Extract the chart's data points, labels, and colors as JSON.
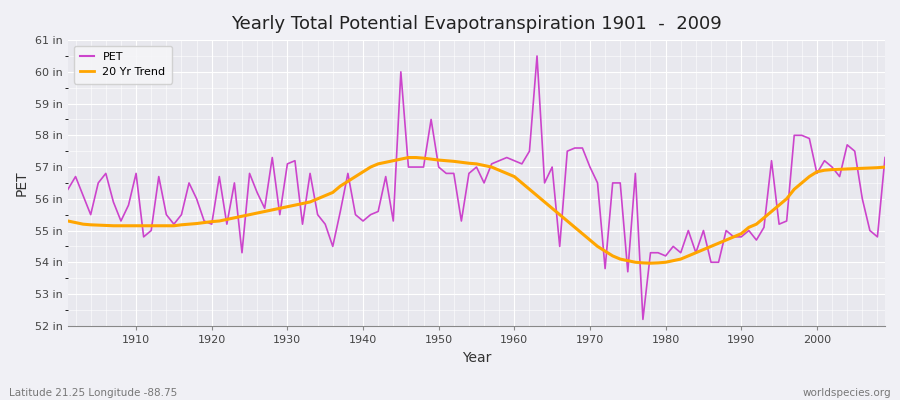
{
  "title": "Yearly Total Potential Evapotranspiration 1901  -  2009",
  "xlabel": "Year",
  "ylabel": "PET",
  "bottom_left_label": "Latitude 21.25 Longitude -88.75",
  "bottom_right_label": "worldspecies.org",
  "pet_color": "#CC44CC",
  "trend_color": "#FFA500",
  "background_color": "#F0F0F5",
  "plot_bg_color": "#F0F0F5",
  "grid_color": "#FFFFFF",
  "ylim": [
    52,
    61
  ],
  "xlim": [
    1901,
    2009
  ],
  "ytick_labels": [
    "52 in",
    "53 in",
    "54 in",
    "55 in",
    "56 in",
    "57 in",
    "58 in",
    "59 in",
    "60 in",
    "61 in"
  ],
  "ytick_values": [
    52,
    53,
    54,
    55,
    56,
    57,
    58,
    59,
    60,
    61
  ],
  "xtick_values": [
    1910,
    1920,
    1930,
    1940,
    1950,
    1960,
    1970,
    1980,
    1990,
    2000
  ],
  "pet_years": [
    1901,
    1902,
    1903,
    1904,
    1905,
    1906,
    1907,
    1908,
    1909,
    1910,
    1911,
    1912,
    1913,
    1914,
    1915,
    1916,
    1917,
    1918,
    1919,
    1920,
    1921,
    1922,
    1923,
    1924,
    1925,
    1926,
    1927,
    1928,
    1929,
    1930,
    1931,
    1932,
    1933,
    1934,
    1935,
    1936,
    1937,
    1938,
    1939,
    1940,
    1941,
    1942,
    1943,
    1944,
    1945,
    1946,
    1947,
    1948,
    1949,
    1950,
    1951,
    1952,
    1953,
    1954,
    1955,
    1956,
    1957,
    1958,
    1959,
    1960,
    1961,
    1962,
    1963,
    1964,
    1965,
    1966,
    1967,
    1968,
    1969,
    1970,
    1971,
    1972,
    1973,
    1974,
    1975,
    1976,
    1977,
    1978,
    1979,
    1980,
    1981,
    1982,
    1983,
    1984,
    1985,
    1986,
    1987,
    1988,
    1989,
    1990,
    1991,
    1992,
    1993,
    1994,
    1995,
    1996,
    1997,
    1998,
    1999,
    2000,
    2001,
    2002,
    2003,
    2004,
    2005,
    2006,
    2007,
    2008,
    2009
  ],
  "pet_values": [
    56.3,
    56.7,
    56.1,
    55.5,
    56.5,
    56.8,
    55.9,
    55.3,
    55.8,
    56.8,
    54.8,
    55.0,
    56.7,
    55.5,
    55.2,
    55.5,
    56.5,
    56.0,
    55.3,
    55.2,
    56.7,
    55.2,
    56.5,
    54.3,
    56.8,
    56.2,
    55.7,
    57.3,
    55.5,
    57.1,
    57.2,
    55.2,
    56.8,
    55.5,
    55.2,
    54.5,
    55.6,
    56.8,
    55.5,
    55.3,
    55.5,
    55.6,
    56.7,
    55.3,
    60.0,
    57.0,
    57.0,
    57.0,
    58.5,
    57.0,
    56.8,
    56.8,
    55.3,
    56.8,
    57.0,
    56.5,
    57.1,
    57.2,
    57.3,
    57.2,
    57.1,
    57.5,
    60.5,
    56.5,
    57.0,
    54.5,
    57.5,
    57.6,
    57.6,
    57.0,
    56.5,
    53.8,
    56.5,
    56.5,
    53.7,
    56.8,
    52.2,
    54.3,
    54.3,
    54.2,
    54.5,
    54.3,
    55.0,
    54.3,
    55.0,
    54.0,
    54.0,
    55.0,
    54.8,
    54.8,
    55.0,
    54.7,
    55.1,
    57.2,
    55.2,
    55.3,
    58.0,
    58.0,
    57.9,
    56.8,
    57.2,
    57.0,
    56.7,
    57.7,
    57.5,
    56.0,
    55.0,
    54.8,
    57.3
  ],
  "trend_years": [
    1901,
    1902,
    1903,
    1904,
    1905,
    1906,
    1907,
    1908,
    1909,
    1910,
    1911,
    1912,
    1913,
    1914,
    1915,
    1916,
    1917,
    1918,
    1919,
    1920,
    1921,
    1922,
    1923,
    1924,
    1925,
    1926,
    1927,
    1928,
    1929,
    1930,
    1931,
    1932,
    1933,
    1934,
    1935,
    1936,
    1937,
    1938,
    1939,
    1940,
    1941,
    1942,
    1943,
    1944,
    1945,
    1946,
    1947,
    1948,
    1949,
    1950,
    1951,
    1952,
    1953,
    1954,
    1955,
    1956,
    1957,
    1958,
    1959,
    1960,
    1961,
    1962,
    1963,
    1964,
    1965,
    1966,
    1967,
    1968,
    1969,
    1970,
    1971,
    1972,
    1973,
    1974,
    1975,
    1976,
    1977,
    1978,
    1979,
    1980,
    1981,
    1982,
    1983,
    1984,
    1985,
    1986,
    1987,
    1988,
    1989,
    1990,
    1991,
    1992,
    1993,
    1994,
    1995,
    1996,
    1997,
    1998,
    1999,
    2000,
    2001,
    2002,
    2003,
    2004,
    2005,
    2006,
    2007,
    2008,
    2009
  ],
  "trend_values": [
    55.3,
    55.25,
    55.2,
    55.18,
    55.17,
    55.16,
    55.15,
    55.15,
    55.15,
    55.15,
    55.15,
    55.15,
    55.15,
    55.15,
    55.15,
    55.18,
    55.2,
    55.22,
    55.25,
    55.28,
    55.3,
    55.35,
    55.4,
    55.45,
    55.5,
    55.55,
    55.6,
    55.65,
    55.7,
    55.75,
    55.8,
    55.85,
    55.9,
    56.0,
    56.1,
    56.2,
    56.4,
    56.55,
    56.7,
    56.85,
    57.0,
    57.1,
    57.15,
    57.2,
    57.25,
    57.3,
    57.3,
    57.28,
    57.25,
    57.22,
    57.2,
    57.18,
    57.15,
    57.12,
    57.1,
    57.05,
    57.0,
    56.9,
    56.8,
    56.7,
    56.5,
    56.3,
    56.1,
    55.9,
    55.7,
    55.5,
    55.3,
    55.1,
    54.9,
    54.7,
    54.5,
    54.35,
    54.2,
    54.1,
    54.05,
    54.0,
    53.98,
    53.97,
    53.98,
    54.0,
    54.05,
    54.1,
    54.2,
    54.3,
    54.4,
    54.5,
    54.6,
    54.7,
    54.8,
    54.9,
    55.1,
    55.2,
    55.4,
    55.6,
    55.8,
    56.0,
    56.3,
    56.5,
    56.7,
    56.85,
    56.9,
    56.92,
    56.93,
    56.94,
    56.95,
    56.96,
    56.97,
    56.98,
    57.0
  ]
}
